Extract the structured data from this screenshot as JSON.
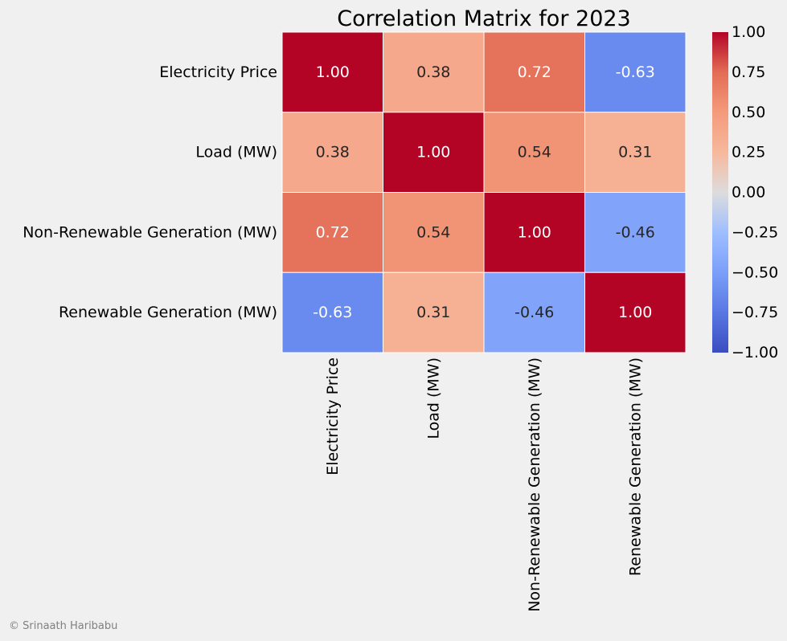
{
  "chart_data": {
    "type": "heatmap",
    "title": "Correlation Matrix for 2023",
    "rows": [
      "Electricity Price",
      "Load (MW)",
      "Non-Renewable Generation (MW)",
      "Renewable Generation (MW)"
    ],
    "columns": [
      "Electricity Price",
      "Load (MW)",
      "Non-Renewable Generation (MW)",
      "Renewable Generation (MW)"
    ],
    "values": [
      [
        1.0,
        0.38,
        0.72,
        -0.63
      ],
      [
        0.38,
        1.0,
        0.54,
        0.31
      ],
      [
        0.72,
        0.54,
        1.0,
        -0.46
      ],
      [
        -0.63,
        0.31,
        -0.46,
        1.0
      ]
    ],
    "value_format": "0.00",
    "colormap": "coolwarm",
    "vmin": -1.0,
    "vmax": 1.0,
    "colorbar": {
      "ticks": [
        1.0,
        0.75,
        0.5,
        0.25,
        0.0,
        -0.25,
        -0.5,
        -0.75,
        -1.0
      ],
      "tick_labels": [
        "1.00",
        "0.75",
        "0.50",
        "0.25",
        "0.00",
        "−0.25",
        "−0.50",
        "−0.75",
        "−1.00"
      ]
    },
    "grid": false,
    "legend": "colorbar-right",
    "background_color": "#f0f0f0",
    "cell_border_color": "#ffffff"
  },
  "footer": {
    "copyright": "© Srinaath Haribabu"
  }
}
